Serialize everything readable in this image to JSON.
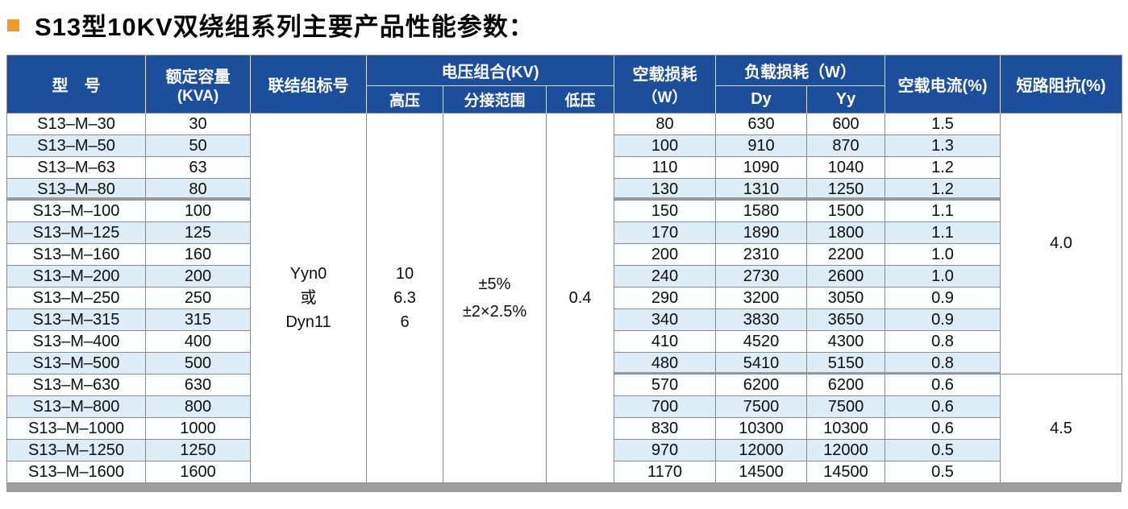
{
  "title": {
    "text": "S13型10KV双绕组系列主要产品性能参数："
  },
  "colors": {
    "header_blue": "#1c4e9b",
    "alt_row_blue": "#ddedf7",
    "accent_orange": "#f19a2a",
    "border_gray": "#8a8a8a",
    "bottom_bar_gray": "#9d9d9d"
  },
  "table": {
    "headers": {
      "model": "型　号",
      "capacity_line1": "额定容量",
      "capacity_line2": "(KVA)",
      "connection": "联结组标号",
      "voltage_group": "电压组合(KV)",
      "hv": "高压",
      "tap_range": "分接范围",
      "lv": "低压",
      "noload_loss_line1": "空载损耗",
      "noload_loss_line2": "（W）",
      "load_loss": "负载损耗（W）",
      "dy": "Dy",
      "yy": "Yy",
      "noload_current": "空载电流(%)",
      "impedance": "短路阻抗(%)"
    },
    "merged": {
      "connection": [
        "Yyn0",
        "或",
        "Dyn11"
      ],
      "high_voltage": [
        "10",
        "6.3",
        "6"
      ],
      "tap_range": [
        "±5%",
        "±2×2.5%"
      ],
      "low_voltage": "0.4",
      "impedance": [
        {
          "value": "4.0",
          "row_span": 12
        },
        {
          "value": "4.5",
          "row_span": 5
        }
      ]
    },
    "rows": [
      {
        "model": "S13–M–30",
        "capacity": "30",
        "noload_loss": "80",
        "dy": "630",
        "yy": "600",
        "current": "1.5"
      },
      {
        "model": "S13–M–50",
        "capacity": "50",
        "noload_loss": "100",
        "dy": "910",
        "yy": "870",
        "current": "1.3"
      },
      {
        "model": "S13–M–63",
        "capacity": "63",
        "noload_loss": "110",
        "dy": "1090",
        "yy": "1040",
        "current": "1.2"
      },
      {
        "model": "S13–M–80",
        "capacity": "80",
        "noload_loss": "130",
        "dy": "1310",
        "yy": "1250",
        "current": "1.2"
      },
      {
        "model": "S13–M–100",
        "capacity": "100",
        "noload_loss": "150",
        "dy": "1580",
        "yy": "1500",
        "current": "1.1"
      },
      {
        "model": "S13–M–125",
        "capacity": "125",
        "noload_loss": "170",
        "dy": "1890",
        "yy": "1800",
        "current": "1.1"
      },
      {
        "model": "S13–M–160",
        "capacity": "160",
        "noload_loss": "200",
        "dy": "2310",
        "yy": "2200",
        "current": "1.0"
      },
      {
        "model": "S13–M–200",
        "capacity": "200",
        "noload_loss": "240",
        "dy": "2730",
        "yy": "2600",
        "current": "1.0"
      },
      {
        "model": "S13–M–250",
        "capacity": "250",
        "noload_loss": "290",
        "dy": "3200",
        "yy": "3050",
        "current": "0.9"
      },
      {
        "model": "S13–M–315",
        "capacity": "315",
        "noload_loss": "340",
        "dy": "3830",
        "yy": "3650",
        "current": "0.9"
      },
      {
        "model": "S13–M–400",
        "capacity": "400",
        "noload_loss": "410",
        "dy": "4520",
        "yy": "4300",
        "current": "0.8"
      },
      {
        "model": "S13–M–500",
        "capacity": "500",
        "noload_loss": "480",
        "dy": "5410",
        "yy": "5150",
        "current": "0.8"
      },
      {
        "model": "S13–M–630",
        "capacity": "630",
        "noload_loss": "570",
        "dy": "6200",
        "yy": "6200",
        "current": "0.6"
      },
      {
        "model": "S13–M–800",
        "capacity": "800",
        "noload_loss": "700",
        "dy": "7500",
        "yy": "7500",
        "current": "0.6"
      },
      {
        "model": "S13–M–1000",
        "capacity": "1000",
        "noload_loss": "830",
        "dy": "10300",
        "yy": "10300",
        "current": "0.6"
      },
      {
        "model": "S13–M–1250",
        "capacity": "1250",
        "noload_loss": "970",
        "dy": "12000",
        "yy": "12000",
        "current": "0.5"
      },
      {
        "model": "S13–M–1600",
        "capacity": "1600",
        "noload_loss": "1170",
        "dy": "14500",
        "yy": "14500",
        "current": "0.5"
      }
    ]
  }
}
